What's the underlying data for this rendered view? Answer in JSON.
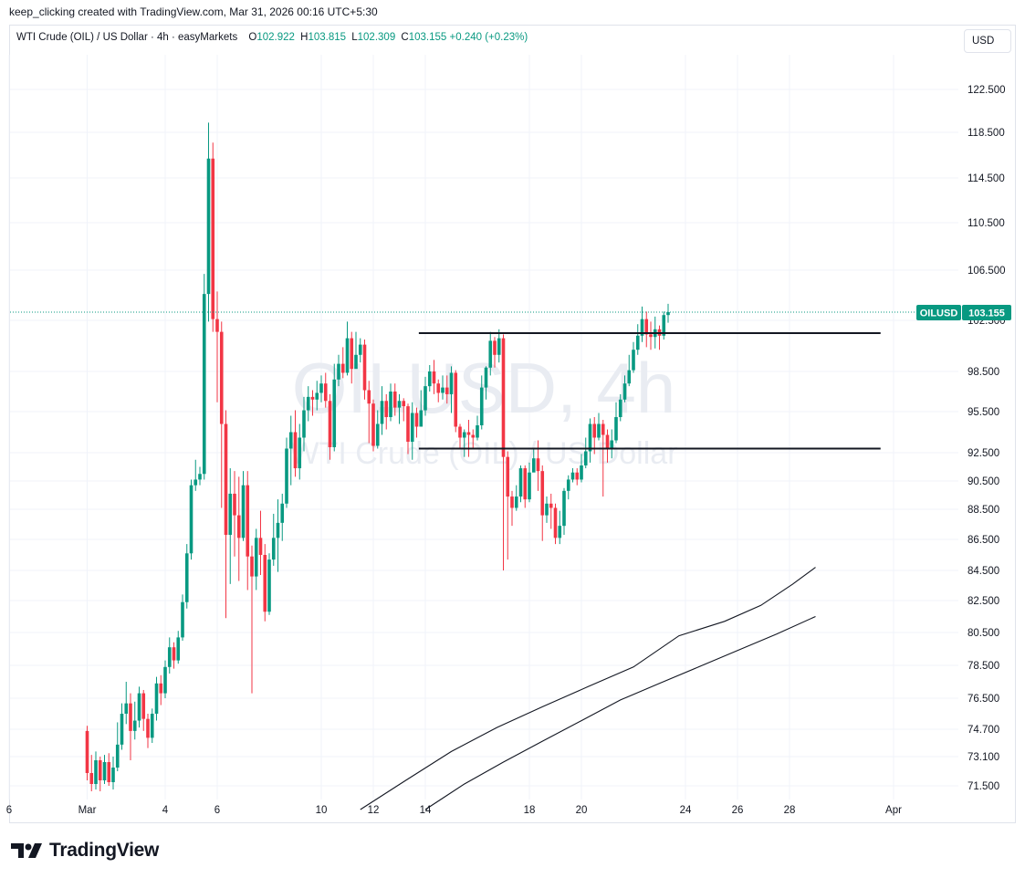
{
  "header": {
    "credit": "keep_clicking created with TradingView.com, Mar 31, 2026 00:16 UTC+5:30"
  },
  "legend": {
    "symbol": "WTI Crude (OIL) / US Dollar · 4h · easyMarkets",
    "open_label": "O",
    "open": "102.922",
    "high_label": "H",
    "high": "103.815",
    "low_label": "L",
    "low": "102.309",
    "close_label": "C",
    "close": "103.155",
    "change": "+0.240 (+0.23%)"
  },
  "currency": "USD",
  "watermark": {
    "line1": "OILUSD, 4h",
    "line2": "WTI Crude (OIL) / US Dollar"
  },
  "price_tag": {
    "symbol": "OILUSD",
    "value": "103.155"
  },
  "logo": {
    "text": "TradingView",
    "icon": "tradingview-logo-icon"
  },
  "colors": {
    "up": "#089981",
    "down": "#f23645",
    "line": "#131722",
    "grid": "#f0f3fa",
    "last_price": "#089981"
  },
  "chart_data": {
    "type": "candlestick",
    "title": "WTI Crude (OIL) / US Dollar · 4h · easyMarkets",
    "x_type": "date",
    "y_ticks": [
      122.5,
      118.5,
      114.5,
      110.5,
      106.5,
      102.5,
      98.5,
      95.5,
      92.5,
      90.5,
      88.5,
      86.5,
      84.5,
      82.5,
      80.5,
      78.5,
      76.5,
      74.7,
      73.1,
      71.5
    ],
    "y_tick_labels": [
      "122.500",
      "118.500",
      "114.500",
      "110.500",
      "106.500",
      "102.500",
      "98.500",
      "95.500",
      "92.500",
      "90.500",
      "88.500",
      "86.500",
      "84.500",
      "82.500",
      "80.500",
      "78.500",
      "76.500",
      "74.700",
      "73.100",
      "71.500"
    ],
    "x_ticks": [
      {
        "date": "2026-02-26",
        "label": "6"
      },
      {
        "date": "2026-03-01",
        "label": "Mar"
      },
      {
        "date": "2026-03-04",
        "label": "4"
      },
      {
        "date": "2026-03-06",
        "label": "6"
      },
      {
        "date": "2026-03-10",
        "label": "10"
      },
      {
        "date": "2026-03-12",
        "label": "12"
      },
      {
        "date": "2026-03-14",
        "label": "14"
      },
      {
        "date": "2026-03-18",
        "label": "18"
      },
      {
        "date": "2026-03-20",
        "label": "20"
      },
      {
        "date": "2026-03-24",
        "label": "24"
      },
      {
        "date": "2026-03-26",
        "label": "26"
      },
      {
        "date": "2026-03-28",
        "label": "28"
      },
      {
        "date": "2026-04-01",
        "label": "Apr"
      }
    ],
    "last_price": 103.155,
    "grid": true,
    "candles": [
      [
        74.6,
        72.2,
        74.9,
        71.8
      ],
      [
        72.2,
        71.6,
        73.2,
        71.2
      ],
      [
        71.6,
        72.9,
        73.4,
        71.3
      ],
      [
        72.9,
        71.8,
        73.1,
        71.2
      ],
      [
        71.8,
        72.8,
        73.2,
        71.6
      ],
      [
        72.8,
        71.7,
        73.3,
        71.5
      ],
      [
        71.7,
        72.5,
        73.1,
        71.3
      ],
      [
        72.5,
        73.8,
        75.1,
        72.3
      ],
      [
        73.8,
        75.6,
        76.2,
        73.5
      ],
      [
        75.6,
        76.2,
        77.5,
        75.0
      ],
      [
        76.2,
        74.6,
        76.8,
        72.9
      ],
      [
        74.6,
        75.2,
        76.3,
        74.1
      ],
      [
        75.2,
        76.8,
        77.2,
        74.8
      ],
      [
        76.8,
        75.3,
        77.0,
        74.6
      ],
      [
        75.3,
        74.2,
        75.6,
        73.6
      ],
      [
        74.2,
        75.6,
        75.9,
        73.9
      ],
      [
        75.6,
        77.4,
        77.8,
        75.2
      ],
      [
        77.4,
        76.8,
        77.9,
        76.1
      ],
      [
        76.8,
        78.4,
        78.8,
        76.5
      ],
      [
        78.4,
        79.6,
        80.2,
        78.0
      ],
      [
        79.6,
        78.8,
        79.9,
        78.3
      ],
      [
        78.8,
        80.2,
        80.6,
        78.6
      ],
      [
        80.2,
        82.4,
        82.9,
        80.0
      ],
      [
        82.4,
        85.6,
        86.2,
        82.0
      ],
      [
        85.6,
        90.2,
        90.6,
        85.2
      ],
      [
        90.2,
        90.6,
        92.0,
        89.8
      ],
      [
        90.6,
        91.0,
        91.5,
        90.2
      ],
      [
        91.0,
        104.6,
        106.2,
        90.6
      ],
      [
        104.6,
        116.2,
        119.4,
        102.4
      ],
      [
        116.2,
        102.6,
        117.6,
        101.6
      ],
      [
        102.6,
        101.6,
        104.8,
        96.2
      ],
      [
        101.6,
        94.6,
        102.4,
        88.6
      ],
      [
        94.6,
        86.8,
        95.6,
        81.4
      ],
      [
        86.8,
        89.6,
        91.4,
        83.6
      ],
      [
        89.6,
        88.1,
        91.2,
        85.4
      ],
      [
        88.1,
        86.6,
        90.8,
        83.8
      ],
      [
        86.6,
        90.2,
        91.2,
        86.4
      ],
      [
        90.2,
        85.4,
        91.2,
        83.2
      ],
      [
        85.4,
        84.1,
        86.1,
        76.8
      ],
      [
        84.1,
        86.6,
        87.2,
        83.2
      ],
      [
        86.6,
        85.5,
        88.4,
        84.2
      ],
      [
        85.5,
        81.8,
        86.2,
        81.2
      ],
      [
        81.8,
        85.2,
        85.6,
        81.6
      ],
      [
        85.2,
        86.6,
        88.2,
        84.8
      ],
      [
        86.6,
        87.6,
        89.2,
        84.4
      ],
      [
        87.6,
        88.9,
        89.6,
        86.4
      ],
      [
        88.9,
        92.8,
        93.6,
        88.6
      ],
      [
        92.8,
        94.0,
        95.2,
        90.2
      ],
      [
        94.0,
        91.4,
        95.6,
        90.8
      ],
      [
        91.4,
        93.6,
        94.6,
        90.6
      ],
      [
        93.6,
        95.6,
        96.6,
        92.6
      ],
      [
        95.6,
        96.6,
        97.4,
        94.8
      ],
      [
        96.6,
        96.4,
        97.1,
        95.2
      ],
      [
        96.4,
        96.9,
        97.8,
        95.6
      ],
      [
        96.9,
        97.6,
        98.2,
        96.2
      ],
      [
        97.6,
        96.3,
        98.4,
        95.8
      ],
      [
        96.3,
        92.9,
        96.8,
        92.0
      ],
      [
        92.9,
        97.9,
        99.1,
        92.6
      ],
      [
        97.9,
        99.1,
        99.8,
        97.4
      ],
      [
        99.1,
        98.4,
        100.4,
        98.0
      ],
      [
        98.4,
        101.1,
        102.4,
        98.2
      ],
      [
        101.1,
        98.7,
        101.6,
        97.6
      ],
      [
        98.7,
        99.8,
        101.6,
        99.0
      ],
      [
        99.8,
        100.6,
        101.1,
        99.2
      ],
      [
        100.6,
        97.1,
        101.0,
        96.4
      ],
      [
        97.1,
        96.1,
        97.8,
        93.2
      ],
      [
        96.1,
        93.0,
        96.4,
        92.6
      ],
      [
        93.0,
        94.6,
        95.6,
        92.8
      ],
      [
        94.6,
        96.3,
        97.4,
        93.8
      ],
      [
        96.3,
        95.1,
        96.8,
        94.2
      ],
      [
        95.1,
        97.0,
        97.6,
        94.8
      ],
      [
        97.0,
        95.8,
        97.6,
        95.2
      ],
      [
        95.8,
        96.3,
        96.8,
        94.6
      ],
      [
        96.3,
        95.9,
        96.5,
        94.8
      ],
      [
        95.9,
        93.3,
        96.1,
        92.4
      ],
      [
        93.3,
        95.4,
        96.2,
        92.0
      ],
      [
        95.4,
        94.4,
        95.8,
        93.6
      ],
      [
        94.4,
        95.6,
        97.1,
        94.6
      ],
      [
        95.6,
        97.4,
        98.1,
        95.2
      ],
      [
        97.4,
        98.5,
        99.0,
        97.0
      ],
      [
        98.5,
        97.6,
        99.4,
        96.8
      ],
      [
        97.6,
        96.9,
        97.9,
        96.2
      ],
      [
        96.9,
        97.3,
        98.2,
        96.4
      ],
      [
        97.3,
        96.8,
        98.2,
        96.1
      ],
      [
        96.8,
        98.4,
        98.9,
        95.4
      ],
      [
        98.4,
        94.4,
        98.6,
        94.0
      ],
      [
        94.4,
        93.6,
        94.6,
        92.8
      ],
      [
        93.6,
        94.0,
        94.2,
        92.2
      ],
      [
        94.0,
        93.8,
        94.9,
        92.2
      ],
      [
        93.8,
        93.6,
        94.2,
        92.8
      ],
      [
        93.6,
        94.5,
        95.2,
        93.4
      ],
      [
        94.5,
        97.3,
        98.2,
        94.2
      ],
      [
        97.3,
        98.8,
        98.9,
        96.4
      ],
      [
        98.8,
        100.9,
        101.6,
        98.2
      ],
      [
        100.9,
        99.8,
        101.2,
        98.8
      ],
      [
        99.8,
        101.1,
        101.8,
        99.2
      ],
      [
        101.1,
        92.2,
        101.4,
        84.5
      ],
      [
        92.2,
        89.4,
        92.6,
        85.2
      ],
      [
        89.4,
        88.6,
        89.8,
        87.4
      ],
      [
        88.6,
        89.4,
        90.2,
        88.4
      ],
      [
        89.4,
        91.4,
        91.6,
        89.0
      ],
      [
        91.4,
        89.2,
        91.6,
        88.6
      ],
      [
        89.2,
        91.1,
        91.8,
        89.0
      ],
      [
        91.1,
        92.1,
        92.8,
        91.2
      ],
      [
        92.1,
        91.2,
        93.4,
        89.8
      ],
      [
        91.2,
        88.1,
        91.6,
        86.4
      ],
      [
        88.1,
        88.9,
        89.4,
        87.6
      ],
      [
        88.9,
        88.6,
        89.6,
        87.2
      ],
      [
        88.6,
        86.6,
        88.9,
        86.2
      ],
      [
        86.6,
        87.4,
        88.4,
        86.2
      ],
      [
        87.4,
        89.8,
        90.0,
        86.8
      ],
      [
        89.8,
        90.6,
        90.9,
        89.2
      ],
      [
        90.6,
        91.1,
        91.4,
        90.4
      ],
      [
        91.1,
        90.6,
        91.4,
        90.2
      ],
      [
        90.6,
        91.6,
        92.4,
        90.4
      ],
      [
        91.6,
        92.6,
        93.6,
        91.4
      ],
      [
        92.6,
        94.6,
        95.0,
        91.8
      ],
      [
        94.6,
        93.6,
        95.1,
        92.4
      ],
      [
        93.6,
        94.6,
        95.4,
        93.4
      ],
      [
        94.6,
        93.8,
        94.9,
        89.4
      ],
      [
        93.8,
        92.8,
        94.2,
        91.8
      ],
      [
        92.8,
        93.4,
        94.2,
        92.1
      ],
      [
        93.4,
        95.1,
        96.2,
        93.2
      ],
      [
        95.1,
        96.4,
        96.8,
        94.8
      ],
      [
        96.4,
        97.6,
        98.2,
        96.2
      ],
      [
        97.6,
        98.6,
        99.8,
        97.4
      ],
      [
        98.6,
        100.2,
        100.8,
        98.4
      ],
      [
        100.2,
        101.3,
        102.2,
        99.8
      ],
      [
        101.3,
        102.6,
        103.6,
        100.8
      ],
      [
        102.6,
        101.4,
        103.2,
        100.4
      ],
      [
        101.4,
        101.2,
        102.4,
        100.2
      ],
      [
        101.2,
        101.8,
        102.8,
        100.3
      ],
      [
        101.8,
        101.3,
        102.1,
        100.2
      ],
      [
        101.3,
        102.92,
        103.2,
        101.0
      ],
      [
        102.922,
        103.155,
        103.815,
        102.309
      ]
    ],
    "ma_lines": [
      {
        "from": "2026-03-11T12:00",
        "to": "2026-03-29",
        "points": [
          [
            0,
            70.2
          ],
          [
            0.05,
            71.0
          ],
          [
            0.1,
            71.8
          ],
          [
            0.2,
            73.4
          ],
          [
            0.3,
            74.8
          ],
          [
            0.4,
            76.0
          ],
          [
            0.5,
            77.2
          ],
          [
            0.6,
            78.4
          ],
          [
            0.7,
            80.3
          ],
          [
            0.8,
            81.2
          ],
          [
            0.88,
            82.2
          ],
          [
            0.95,
            83.6
          ],
          [
            1,
            84.7
          ]
        ]
      },
      {
        "from": "2026-03-14",
        "to": "2026-03-29",
        "points": [
          [
            0,
            70.2
          ],
          [
            0.05,
            70.9
          ],
          [
            0.1,
            71.6
          ],
          [
            0.2,
            72.8
          ],
          [
            0.3,
            74.0
          ],
          [
            0.4,
            75.2
          ],
          [
            0.5,
            76.4
          ],
          [
            0.6,
            77.4
          ],
          [
            0.7,
            78.4
          ],
          [
            0.8,
            79.4
          ],
          [
            0.9,
            80.4
          ],
          [
            1,
            81.5
          ]
        ]
      }
    ],
    "horizontal_lines": [
      {
        "from": "2026-03-13T18:00",
        "to": "2026-03-31T12:00",
        "value": 101.5
      },
      {
        "from": "2026-03-13T18:00",
        "to": "2026-03-31T12:00",
        "value": 92.8
      }
    ]
  }
}
